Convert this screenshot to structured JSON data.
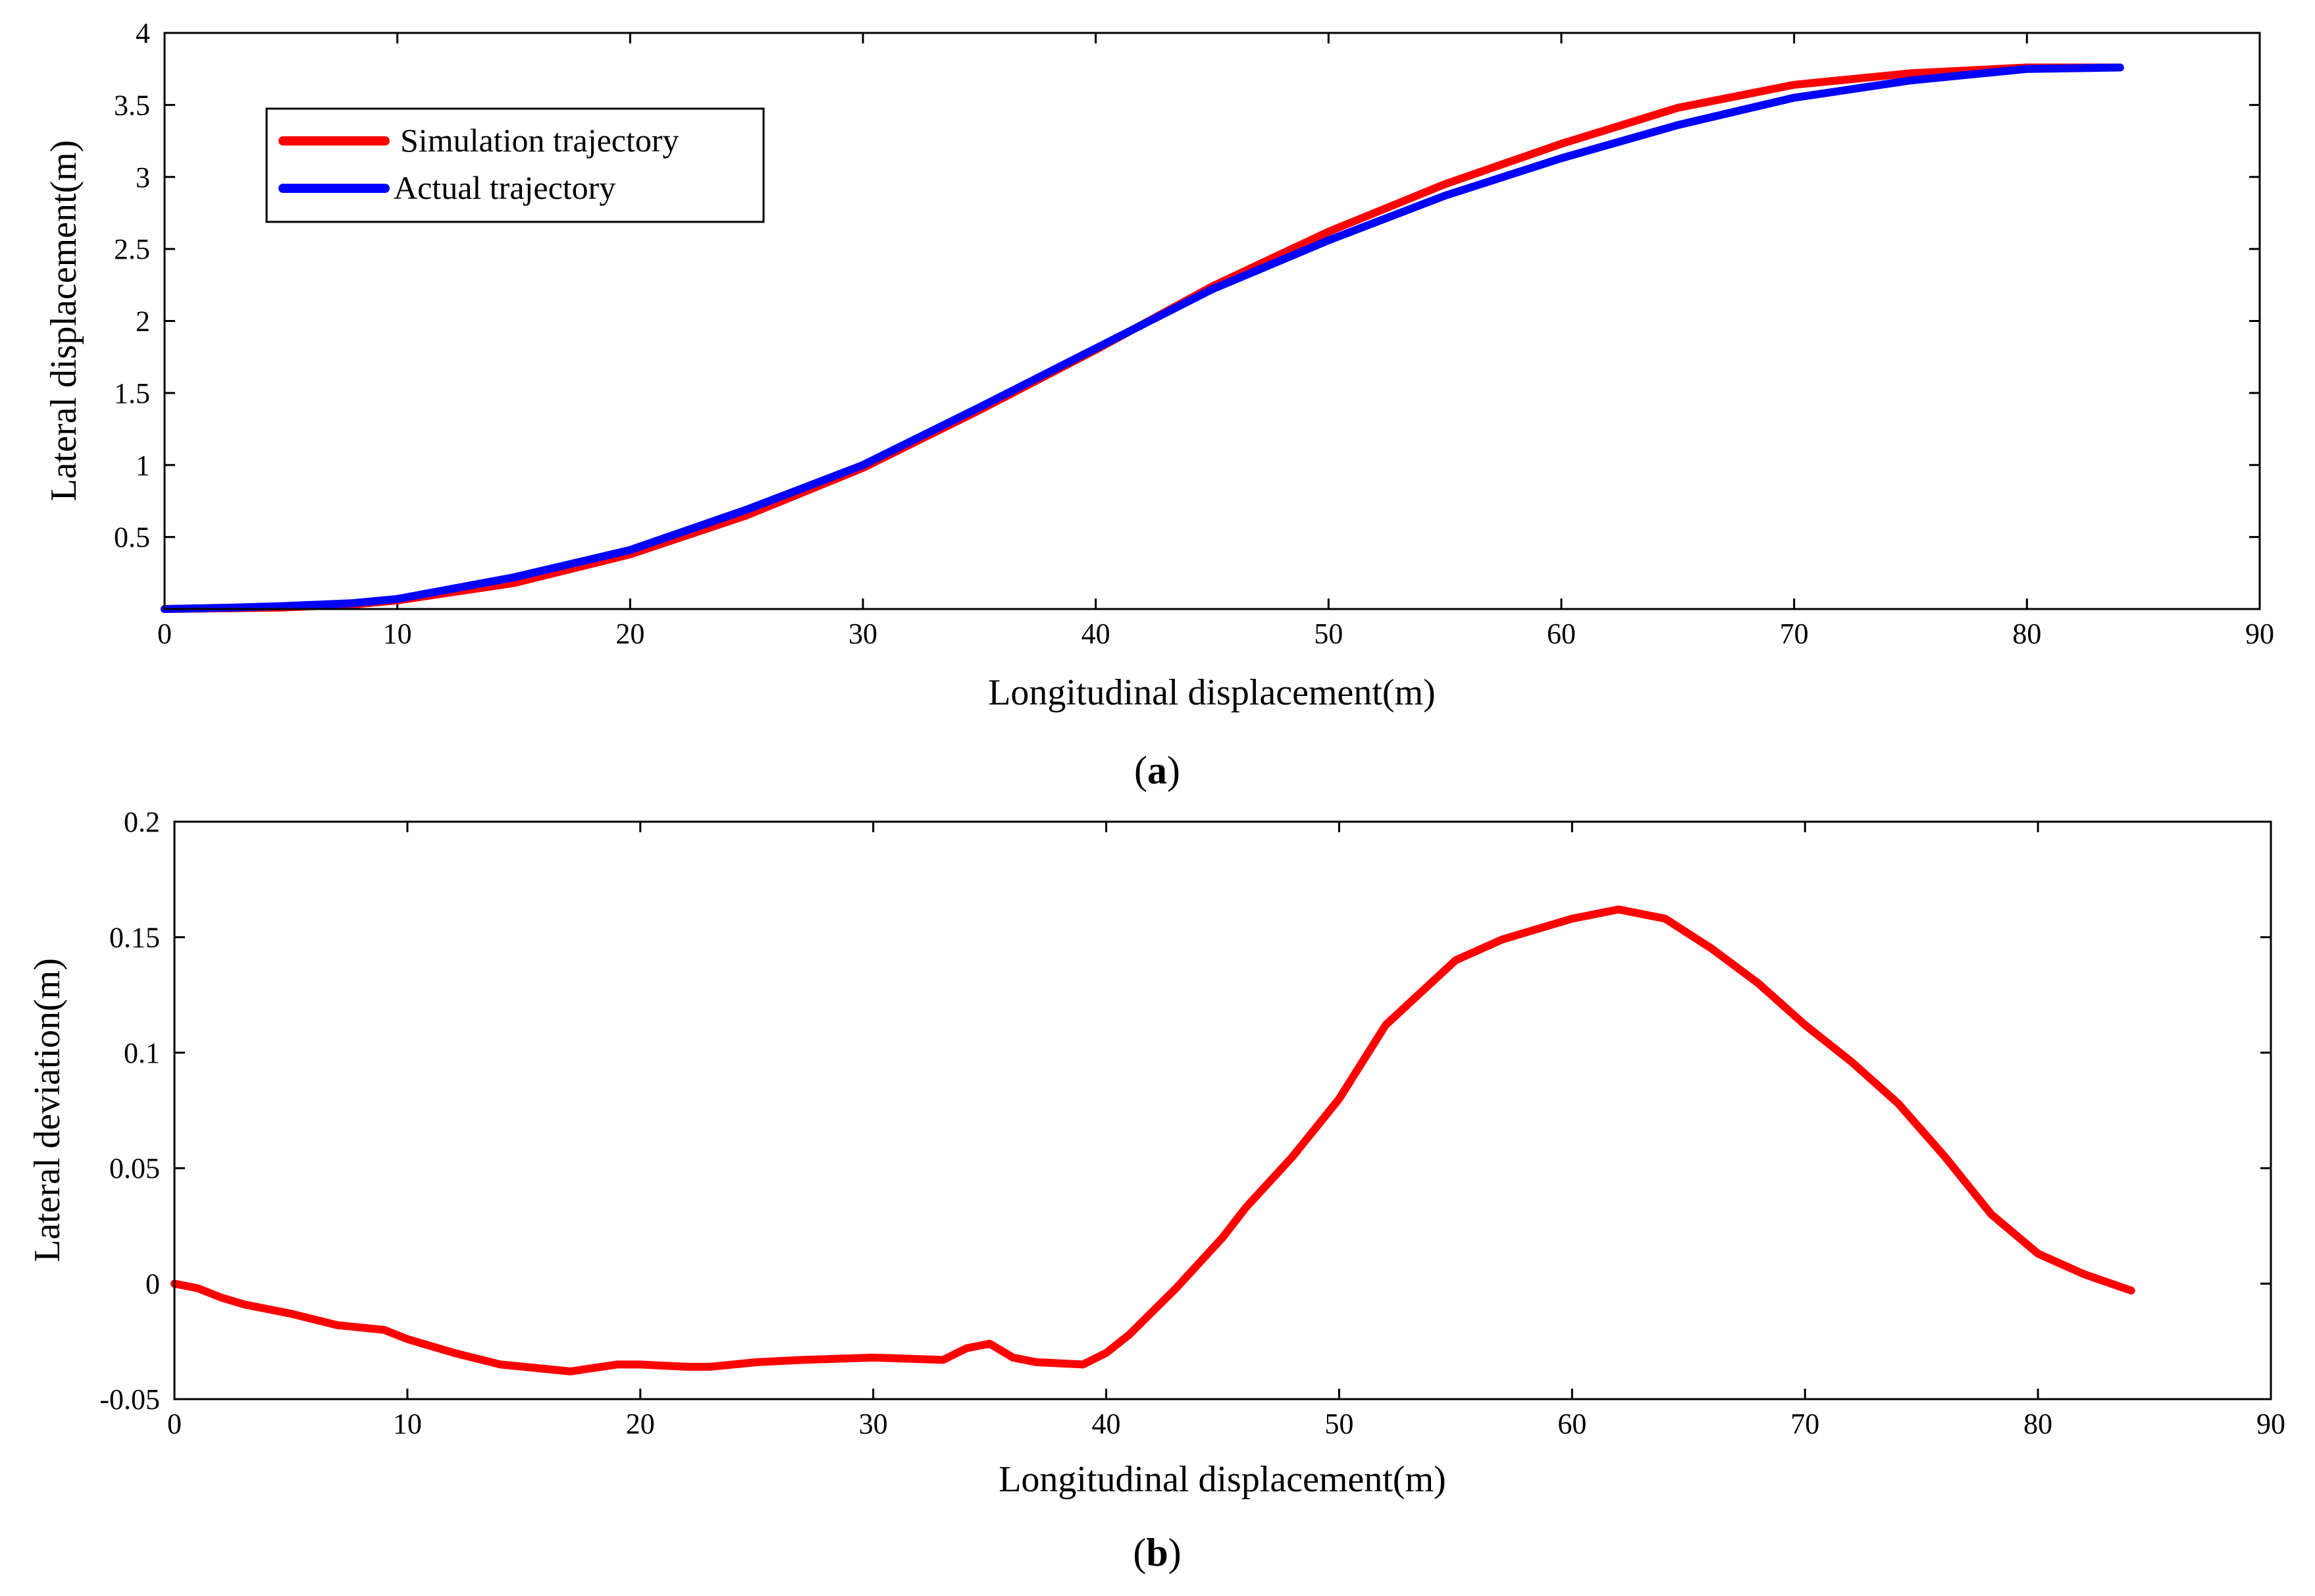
{
  "chart_data": [
    {
      "type": "line",
      "panel_label": "a",
      "xlabel": "Longitudinal displacement(m)",
      "ylabel": "Lateral displacement(m)",
      "xlim": [
        0,
        90
      ],
      "ylim": [
        0,
        4
      ],
      "xticks": [
        0,
        10,
        20,
        30,
        40,
        50,
        60,
        70,
        80,
        90
      ],
      "yticks": [
        0.5,
        1,
        1.5,
        2,
        2.5,
        3,
        3.5,
        4
      ],
      "grid": false,
      "legend": "top-left",
      "series": [
        {
          "name": "Simulation trajectory",
          "color": "#ff0000",
          "x": [
            0,
            5,
            8,
            10,
            15,
            20,
            25,
            30,
            35,
            40,
            45,
            50,
            55,
            60,
            65,
            70,
            75,
            80,
            84
          ],
          "y": [
            0,
            0.01,
            0.03,
            0.06,
            0.18,
            0.38,
            0.65,
            0.98,
            1.38,
            1.8,
            2.24,
            2.62,
            2.95,
            3.23,
            3.48,
            3.64,
            3.72,
            3.76,
            3.76
          ]
        },
        {
          "name": "Actual trajectory",
          "color": "#0000ff",
          "x": [
            0,
            3,
            5,
            8,
            10,
            15,
            20,
            25,
            30,
            35,
            40,
            45,
            50,
            55,
            60,
            65,
            70,
            75,
            80,
            84
          ],
          "y": [
            0,
            0.01,
            0.02,
            0.04,
            0.07,
            0.22,
            0.41,
            0.69,
            1.0,
            1.4,
            1.81,
            2.22,
            2.56,
            2.87,
            3.13,
            3.36,
            3.55,
            3.67,
            3.75,
            3.76
          ]
        }
      ]
    },
    {
      "type": "line",
      "panel_label": "b",
      "xlabel": "Longitudinal displacement(m)",
      "ylabel": "Lateral deviation(m)",
      "xlim": [
        0,
        90
      ],
      "ylim": [
        -0.05,
        0.2
      ],
      "xticks": [
        0,
        10,
        20,
        30,
        40,
        50,
        60,
        70,
        80,
        90
      ],
      "yticks": [
        -0.05,
        0,
        0.05,
        0.1,
        0.15,
        0.2
      ],
      "grid": false,
      "series": [
        {
          "name": "Lateral deviation",
          "color": "#ff0000",
          "x": [
            0,
            1,
            2,
            3,
            5,
            7,
            9,
            10,
            12,
            14,
            15,
            17,
            19,
            20,
            22,
            23,
            25,
            27,
            30,
            33,
            34,
            35,
            36,
            37,
            39,
            40,
            41,
            43,
            45,
            46,
            48,
            50,
            52,
            55,
            57,
            60,
            62,
            64,
            66,
            68,
            70,
            72,
            74,
            76,
            78,
            80,
            82,
            84
          ],
          "y": [
            0,
            -0.002,
            -0.006,
            -0.009,
            -0.013,
            -0.018,
            -0.02,
            -0.024,
            -0.03,
            -0.035,
            -0.036,
            -0.038,
            -0.035,
            -0.035,
            -0.036,
            -0.036,
            -0.034,
            -0.033,
            -0.032,
            -0.033,
            -0.028,
            -0.026,
            -0.032,
            -0.034,
            -0.035,
            -0.03,
            -0.022,
            -0.002,
            0.02,
            0.033,
            0.055,
            0.08,
            0.112,
            0.14,
            0.149,
            0.158,
            0.162,
            0.158,
            0.145,
            0.13,
            0.112,
            0.096,
            0.078,
            0.055,
            0.03,
            0.013,
            0.004,
            -0.003
          ]
        }
      ]
    }
  ]
}
